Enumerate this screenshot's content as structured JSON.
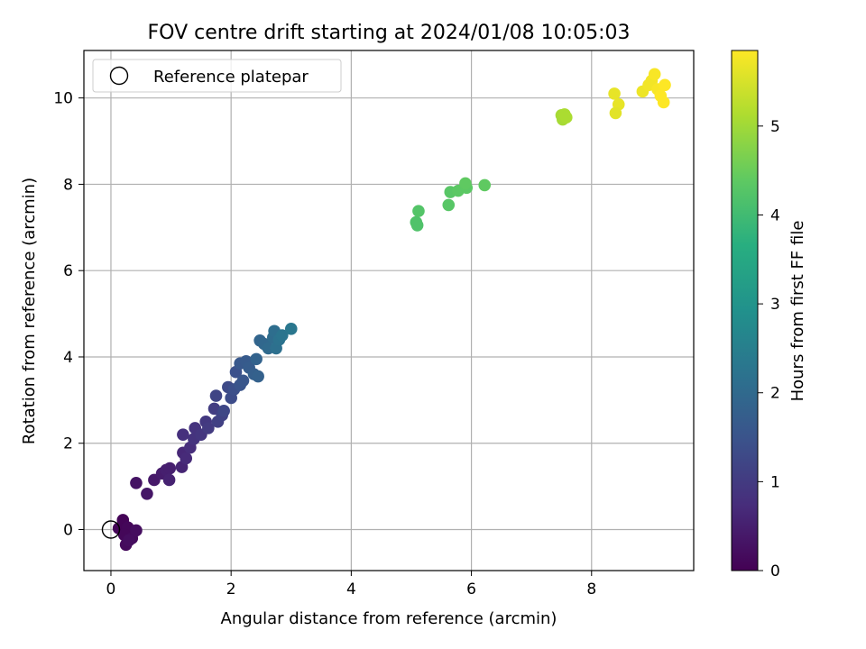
{
  "chart_data": {
    "type": "scatter",
    "title": "FOV centre drift starting at 2024/01/08 10:05:03",
    "xlabel": "Angular distance from reference (arcmin)",
    "ylabel": "Rotation from reference (arcmin)",
    "xlim": [
      -0.45,
      9.7
    ],
    "ylim": [
      -0.95,
      11.1
    ],
    "xticks": [
      0,
      2,
      4,
      6,
      8
    ],
    "yticks": [
      0,
      2,
      4,
      6,
      8,
      10
    ],
    "grid": true,
    "legend": {
      "location": "upper-left",
      "entries": [
        "Reference platepar"
      ]
    },
    "reference_point": {
      "x": 0.0,
      "y": 0.0,
      "marker": "open-circle"
    },
    "colorbar": {
      "label": "Hours from first FF file",
      "colormap": "viridis",
      "range": [
        0,
        5.85
      ],
      "ticks": [
        0,
        1,
        2,
        3,
        4,
        5
      ]
    },
    "points": [
      {
        "x": 0.2,
        "y": 0.22,
        "c": 0.05
      },
      {
        "x": 0.13,
        "y": 0.03,
        "c": 0.05
      },
      {
        "x": 0.28,
        "y": 0.05,
        "c": 0.1
      },
      {
        "x": 0.22,
        "y": -0.12,
        "c": 0.1
      },
      {
        "x": 0.25,
        "y": -0.35,
        "c": 0.15
      },
      {
        "x": 0.35,
        "y": -0.2,
        "c": 0.15
      },
      {
        "x": 0.42,
        "y": -0.02,
        "c": 0.2
      },
      {
        "x": 0.3,
        "y": -0.25,
        "c": 0.2
      },
      {
        "x": 0.42,
        "y": 1.08,
        "c": 0.3
      },
      {
        "x": 0.6,
        "y": 0.83,
        "c": 0.35
      },
      {
        "x": 0.72,
        "y": 1.15,
        "c": 0.4
      },
      {
        "x": 0.85,
        "y": 1.3,
        "c": 0.45
      },
      {
        "x": 0.92,
        "y": 1.38,
        "c": 0.5
      },
      {
        "x": 0.98,
        "y": 1.42,
        "c": 0.5
      },
      {
        "x": 0.97,
        "y": 1.15,
        "c": 0.55
      },
      {
        "x": 1.18,
        "y": 1.45,
        "c": 0.6
      },
      {
        "x": 1.2,
        "y": 1.78,
        "c": 0.65
      },
      {
        "x": 1.25,
        "y": 1.65,
        "c": 0.7
      },
      {
        "x": 1.32,
        "y": 1.9,
        "c": 0.75
      },
      {
        "x": 1.2,
        "y": 2.2,
        "c": 0.8
      },
      {
        "x": 1.4,
        "y": 2.35,
        "c": 0.85
      },
      {
        "x": 1.38,
        "y": 2.1,
        "c": 0.85
      },
      {
        "x": 1.5,
        "y": 2.2,
        "c": 0.9
      },
      {
        "x": 1.58,
        "y": 2.5,
        "c": 0.95
      },
      {
        "x": 1.62,
        "y": 2.35,
        "c": 1.0
      },
      {
        "x": 1.72,
        "y": 2.8,
        "c": 1.05
      },
      {
        "x": 1.78,
        "y": 2.5,
        "c": 1.1
      },
      {
        "x": 1.85,
        "y": 2.65,
        "c": 1.15
      },
      {
        "x": 1.75,
        "y": 3.1,
        "c": 1.2
      },
      {
        "x": 1.88,
        "y": 2.75,
        "c": 1.25
      },
      {
        "x": 1.95,
        "y": 3.3,
        "c": 1.3
      },
      {
        "x": 2.0,
        "y": 3.05,
        "c": 1.35
      },
      {
        "x": 2.05,
        "y": 3.25,
        "c": 1.4
      },
      {
        "x": 2.08,
        "y": 3.65,
        "c": 1.45
      },
      {
        "x": 2.15,
        "y": 3.35,
        "c": 1.5
      },
      {
        "x": 2.2,
        "y": 3.45,
        "c": 1.55
      },
      {
        "x": 2.15,
        "y": 3.85,
        "c": 1.6
      },
      {
        "x": 2.25,
        "y": 3.9,
        "c": 1.65
      },
      {
        "x": 2.3,
        "y": 3.75,
        "c": 1.7
      },
      {
        "x": 2.38,
        "y": 3.6,
        "c": 1.75
      },
      {
        "x": 2.45,
        "y": 3.55,
        "c": 1.8
      },
      {
        "x": 2.42,
        "y": 3.95,
        "c": 1.85
      },
      {
        "x": 2.48,
        "y": 4.38,
        "c": 1.9
      },
      {
        "x": 2.55,
        "y": 4.3,
        "c": 1.95
      },
      {
        "x": 2.62,
        "y": 4.2,
        "c": 2.0
      },
      {
        "x": 2.7,
        "y": 4.45,
        "c": 2.05
      },
      {
        "x": 2.72,
        "y": 4.6,
        "c": 2.1
      },
      {
        "x": 2.75,
        "y": 4.2,
        "c": 2.15
      },
      {
        "x": 2.8,
        "y": 4.4,
        "c": 2.2
      },
      {
        "x": 2.85,
        "y": 4.5,
        "c": 2.25
      },
      {
        "x": 3.0,
        "y": 4.65,
        "c": 2.3
      },
      {
        "x": 5.08,
        "y": 7.12,
        "c": 4.2
      },
      {
        "x": 5.1,
        "y": 7.05,
        "c": 4.2
      },
      {
        "x": 5.12,
        "y": 7.38,
        "c": 4.25
      },
      {
        "x": 5.62,
        "y": 7.52,
        "c": 4.3
      },
      {
        "x": 5.65,
        "y": 7.82,
        "c": 4.3
      },
      {
        "x": 5.78,
        "y": 7.85,
        "c": 4.35
      },
      {
        "x": 5.92,
        "y": 7.92,
        "c": 4.35
      },
      {
        "x": 5.9,
        "y": 8.02,
        "c": 4.4
      },
      {
        "x": 6.22,
        "y": 7.98,
        "c": 4.4
      },
      {
        "x": 7.5,
        "y": 9.6,
        "c": 5.05
      },
      {
        "x": 7.52,
        "y": 9.5,
        "c": 5.05
      },
      {
        "x": 7.55,
        "y": 9.62,
        "c": 5.1
      },
      {
        "x": 7.58,
        "y": 9.55,
        "c": 5.1
      },
      {
        "x": 8.38,
        "y": 10.1,
        "c": 5.65
      },
      {
        "x": 8.45,
        "y": 9.85,
        "c": 5.65
      },
      {
        "x": 8.4,
        "y": 9.65,
        "c": 5.6
      },
      {
        "x": 8.85,
        "y": 10.15,
        "c": 5.7
      },
      {
        "x": 8.95,
        "y": 10.3,
        "c": 5.75
      },
      {
        "x": 9.0,
        "y": 10.4,
        "c": 5.75
      },
      {
        "x": 9.05,
        "y": 10.55,
        "c": 5.8
      },
      {
        "x": 9.1,
        "y": 10.2,
        "c": 5.8
      },
      {
        "x": 9.15,
        "y": 10.05,
        "c": 5.85
      },
      {
        "x": 9.2,
        "y": 9.9,
        "c": 5.85
      },
      {
        "x": 9.22,
        "y": 10.3,
        "c": 5.85
      }
    ]
  }
}
